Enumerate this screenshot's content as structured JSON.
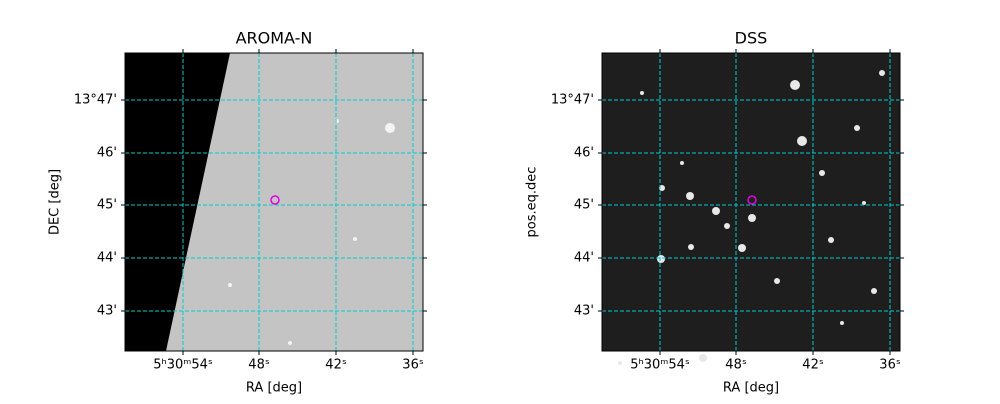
{
  "panels": [
    {
      "title": "AROMA-N",
      "xlabel": "RA [deg]",
      "ylabel": "DEC [deg]",
      "xticks": [
        "5ʰ30ᵐ54ˢ",
        "48ˢ",
        "42ˢ",
        "36ˢ"
      ],
      "yticks": [
        "13°47'",
        "46'",
        "45'",
        "44'",
        "43'"
      ]
    },
    {
      "title": "DSS",
      "xlabel": "RA [deg]",
      "ylabel": "pos.eq.dec",
      "xticks": [
        "5ʰ30ᵐ54ˢ",
        "48ˢ",
        "42ˢ",
        "36ˢ"
      ],
      "yticks": [
        "13°47'",
        "46'",
        "45'",
        "44'",
        "43'"
      ]
    }
  ]
}
